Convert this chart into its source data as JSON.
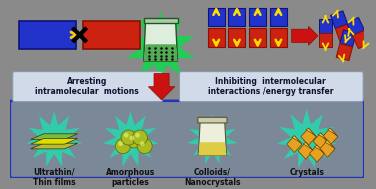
{
  "bg_color": "#8a8a8a",
  "bottom_border_color": "#2233bb",
  "bottom_bg": "#7a8898",
  "box_color": "#d0dae8",
  "box_edge": "#8899aa",
  "arrow_color": "#cc1111",
  "text_box1": "Arresting\nintramolecular  motions",
  "text_box2": "Inhibiting  intermolecular\ninteractions /energy transfer",
  "label1": "Ultrathin/\nThin films",
  "label2": "Amorphous\nparticles",
  "label3": "Colloids/\nNanocrystals",
  "label4": "Crystals",
  "blue_color": "#2233cc",
  "red_color": "#cc2211",
  "yellow_arr": "#ffdd00",
  "green_burst": "#22cc55",
  "cyan_burst": "#33ccaa",
  "sphere_color": "#aabb22",
  "gold_color": "#dd9900",
  "beaker_liq": "#88bb44",
  "beaker_liq2": "#ddcc44"
}
